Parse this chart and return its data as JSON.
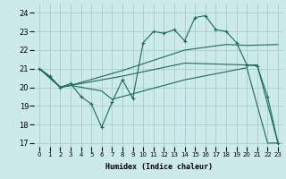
{
  "xlabel": "Humidex (Indice chaleur)",
  "bg_color": "#cceaea",
  "grid_color": "#aacccc",
  "line_color": "#1a6b5a",
  "ylim": [
    16.8,
    24.5
  ],
  "xlim": [
    -0.5,
    23.5
  ],
  "yticks": [
    17,
    18,
    19,
    20,
    21,
    22,
    23,
    24
  ],
  "xticks": [
    0,
    1,
    2,
    3,
    4,
    5,
    6,
    7,
    8,
    9,
    10,
    11,
    12,
    13,
    14,
    15,
    16,
    17,
    18,
    19,
    20,
    21,
    22,
    23
  ],
  "line1_x": [
    0,
    1,
    2,
    3,
    4,
    5,
    6,
    7,
    8,
    9,
    10,
    11,
    12,
    13,
    14,
    15,
    16,
    17,
    18,
    19,
    20,
    21,
    22,
    23
  ],
  "line1_y": [
    21.0,
    20.6,
    20.0,
    20.2,
    19.5,
    19.1,
    17.85,
    19.2,
    20.4,
    19.4,
    22.4,
    23.0,
    22.9,
    23.1,
    22.5,
    23.75,
    23.85,
    23.1,
    23.0,
    22.4,
    21.2,
    21.15,
    19.5,
    17.0
  ],
  "line2_x": [
    0,
    2,
    3,
    6,
    7,
    8,
    14,
    20,
    22,
    23
  ],
  "line2_y": [
    21.0,
    20.0,
    20.1,
    19.8,
    19.35,
    19.5,
    20.4,
    21.05,
    17.0,
    17.0
  ],
  "line3_x": [
    0,
    2,
    3,
    8,
    14,
    20,
    21,
    23
  ],
  "line3_y": [
    21.0,
    20.0,
    20.1,
    20.6,
    21.3,
    21.2,
    21.2,
    17.0
  ],
  "line4_x": [
    0,
    2,
    3,
    8,
    14,
    18,
    20,
    23
  ],
  "line4_y": [
    21.0,
    20.0,
    20.1,
    20.9,
    22.0,
    22.3,
    22.25,
    22.3
  ]
}
